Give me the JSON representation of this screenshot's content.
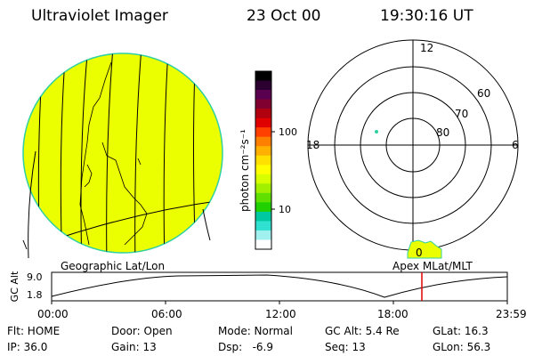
{
  "header": {
    "instrument": "Ultraviolet Imager",
    "date": "23 Oct 00",
    "time": "19:30:16 UT"
  },
  "colorbar": {
    "unit_label": "photon cm⁻²s⁻¹",
    "ticks": [
      "100",
      "10"
    ],
    "colors": [
      "#000000",
      "#2b0030",
      "#5a0050",
      "#800030",
      "#b00010",
      "#e00000",
      "#ff4000",
      "#ff8000",
      "#ffb000",
      "#ffe000",
      "#ffff00",
      "#d8ff00",
      "#a0f000",
      "#60e000",
      "#20d000",
      "#00c8a0",
      "#30e0d0",
      "#a0f0f0",
      "#ffffff"
    ]
  },
  "left_panel": {
    "label": "Geographic Lat/Lon",
    "fill_color": "#ecff00",
    "rim_color": "#30d0a0"
  },
  "right_panel": {
    "label": "Apex MLat/MLT",
    "clock_labels": {
      "top": "12",
      "left": "18",
      "right": "6",
      "bottom": "0"
    },
    "lat_labels": [
      "60",
      "70",
      "80"
    ],
    "point_color": "#30d0a0"
  },
  "altitude_plot": {
    "ylabel": "GC Alt",
    "yticks": [
      "9.0",
      "1.8"
    ],
    "xticks": [
      "00:00",
      "06:00",
      "12:00",
      "18:00",
      "23:59"
    ],
    "marker_color": "#e00000"
  },
  "info": {
    "flt": "Flt: HOME",
    "door": "Door: Open",
    "mode": "Mode: Normal",
    "gc_alt": "GC Alt: 5.4 Re",
    "glat": "GLat: 16.3",
    "ip": "IP: 36.0",
    "gain": "Gain: 13",
    "dsp": "Dsp:   -6.9",
    "seq": "Seq: 13",
    "glon": "GLon: 56.3"
  }
}
